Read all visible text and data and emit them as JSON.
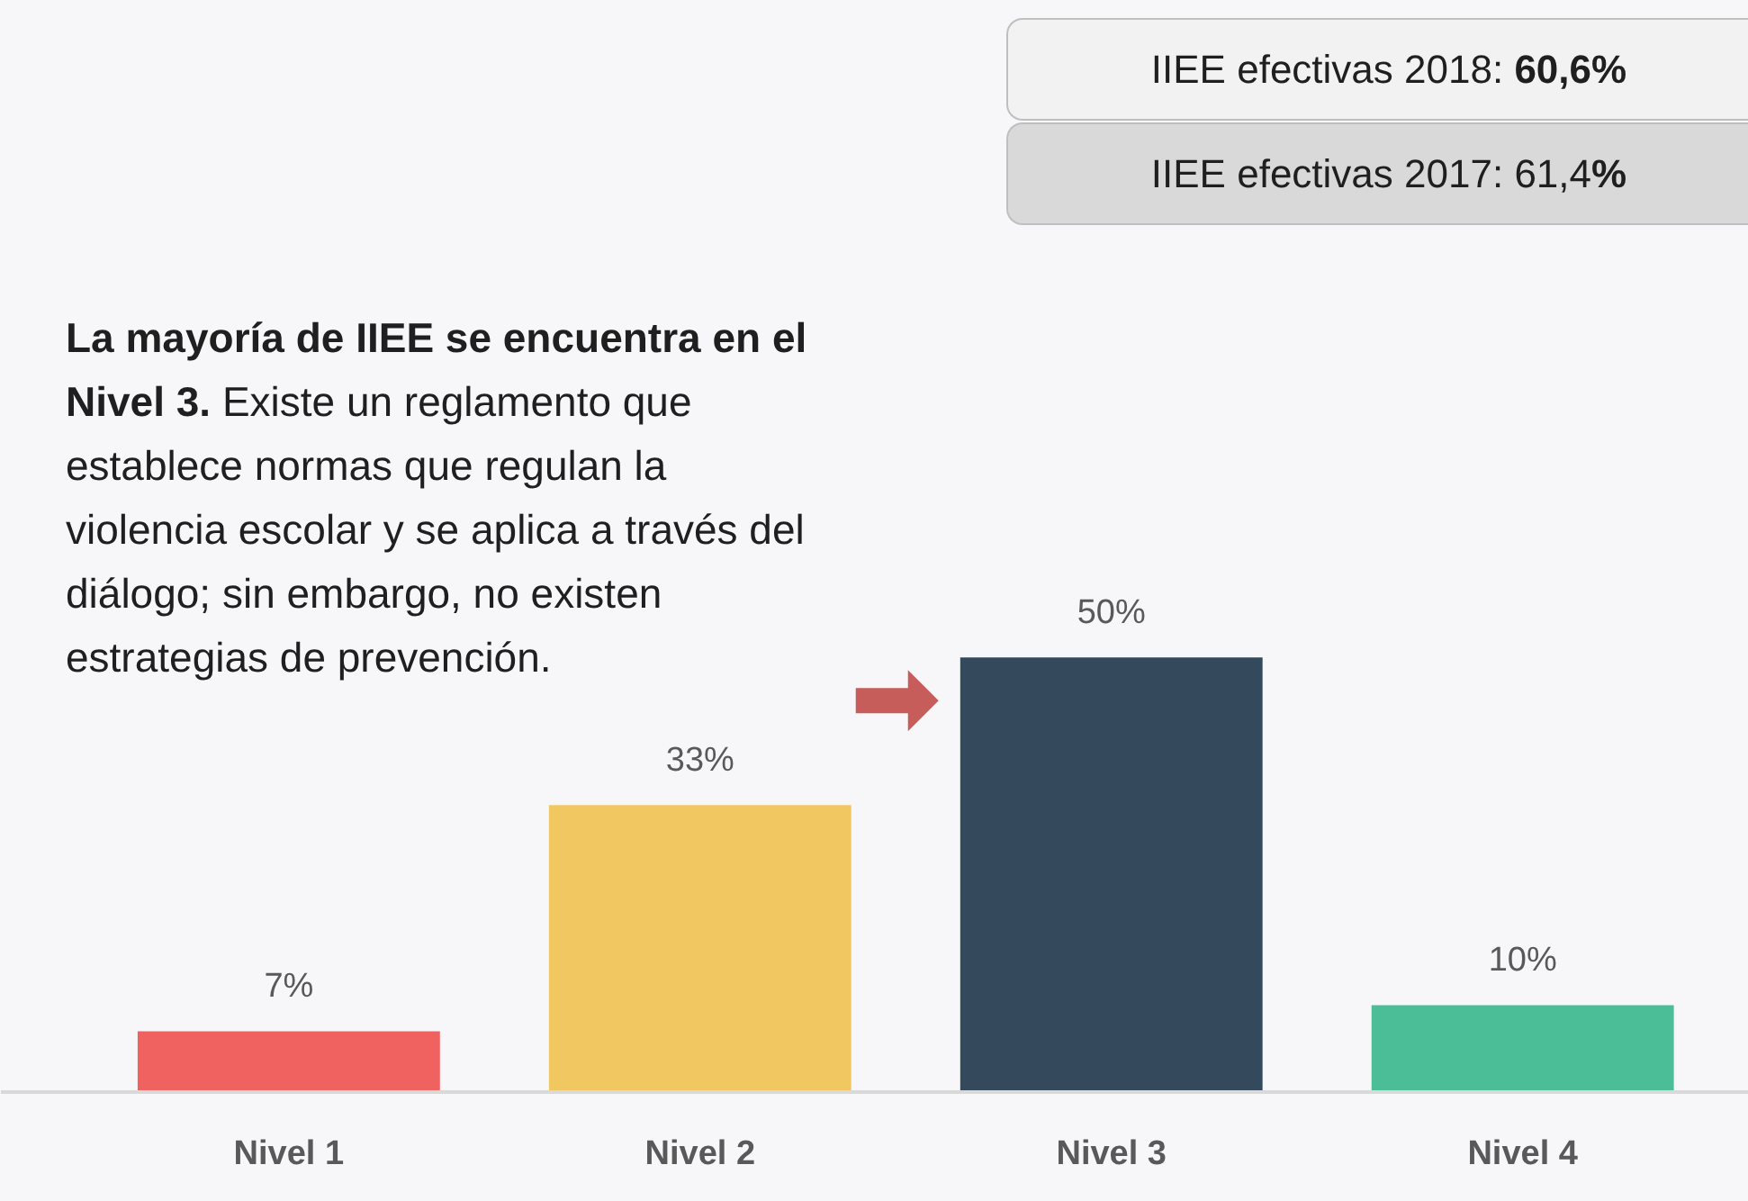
{
  "chart_data": {
    "type": "bar",
    "categories": [
      "Nivel 1",
      "Nivel 2",
      "Nivel 3",
      "Nivel 4"
    ],
    "values": [
      7,
      33,
      50,
      10
    ],
    "colors": [
      "#f06260",
      "#f0c760",
      "#344a5c",
      "#4bbe97"
    ],
    "value_labels": [
      "7%",
      "33%",
      "50%",
      "10%"
    ],
    "tick_labels": "x",
    "annotations": [
      "IIEE efectivas 2018: 60,6%",
      "IIEE efectivas 2017: 61,4%",
      "La mayoría de IIEE se encuentra en el Nivel 3. Existe un reglamento que establece normas que regulan la violencia escolar y se aplica a través del diálogo; sin embargo, no existen estrategias de prevención."
    ]
  }
}
